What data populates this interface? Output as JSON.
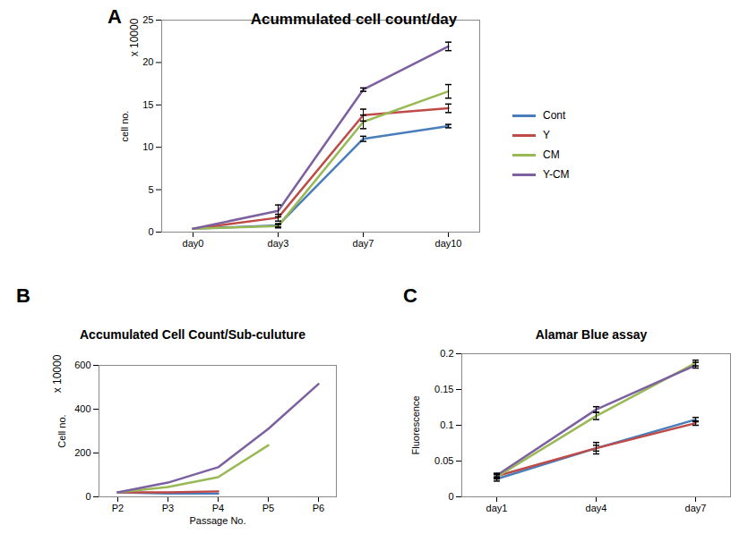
{
  "chart_data": [
    {
      "type": "line",
      "panel_label": "A",
      "title": "Acummulated cell count/day",
      "y_label": "cell no.",
      "annotations": [
        "x 10000"
      ],
      "categories": [
        "day0",
        "day3",
        "day7",
        "day10"
      ],
      "ylim": [
        0,
        25
      ],
      "yticks": [
        0,
        5,
        10,
        15,
        20,
        25
      ],
      "legend": "right",
      "series": [
        {
          "name": "Cont",
          "color": "#4a7ebb",
          "values": [
            0.4,
            0.8,
            11,
            12.5
          ],
          "errors": [
            0,
            0.2,
            0.3,
            0.2
          ]
        },
        {
          "name": "Y",
          "color": "#be4b48",
          "values": [
            0.4,
            1.7,
            13.8,
            14.6
          ],
          "errors": [
            0,
            0.4,
            0.7,
            0.5
          ]
        },
        {
          "name": "CM",
          "color": "#98b954",
          "values": [
            0.4,
            0.7,
            13,
            16.6
          ],
          "errors": [
            0,
            0.2,
            0.8,
            0.8
          ]
        },
        {
          "name": "Y-CM",
          "color": "#7d60a0",
          "values": [
            0.4,
            2.5,
            16.8,
            21.9
          ],
          "errors": [
            0,
            0.7,
            0.2,
            0.5
          ]
        }
      ]
    },
    {
      "type": "line",
      "panel_label": "B",
      "title": "Accumulated Cell Count/Sub-culuture",
      "x_label": "Passage No.",
      "y_label": "Cell no.",
      "annotations": [
        "x 10000"
      ],
      "categories": [
        "P2",
        "P3",
        "P4",
        "P5",
        "P6"
      ],
      "ylim": [
        0,
        600
      ],
      "yticks": [
        0,
        200,
        400,
        600
      ],
      "legend": "none",
      "series": [
        {
          "name": "Cont",
          "color": "#4a7ebb",
          "values": [
            20,
            15,
            15,
            null,
            null
          ]
        },
        {
          "name": "Y",
          "color": "#be4b48",
          "values": [
            20,
            20,
            25,
            null,
            null
          ]
        },
        {
          "name": "CM",
          "color": "#98b954",
          "values": [
            20,
            45,
            90,
            235,
            null
          ]
        },
        {
          "name": "Y-CM",
          "color": "#7d60a0",
          "values": [
            20,
            65,
            135,
            310,
            515
          ]
        }
      ]
    },
    {
      "type": "line",
      "panel_label": "C",
      "title": "Alamar Blue assay",
      "y_label": "Fluorescence",
      "categories": [
        "day1",
        "day4",
        "day7"
      ],
      "ylim": [
        0,
        0.2
      ],
      "yticks": [
        0,
        0.05,
        0.1,
        0.15,
        0.2
      ],
      "legend": "none",
      "series": [
        {
          "name": "Cont",
          "color": "#4a7ebb",
          "values": [
            0.025,
            0.068,
            0.108
          ],
          "errors": [
            0.003,
            0.004,
            0.003
          ]
        },
        {
          "name": "Y",
          "color": "#be4b48",
          "values": [
            0.029,
            0.068,
            0.103
          ],
          "errors": [
            0.003,
            0.008,
            0.003
          ]
        },
        {
          "name": "CM",
          "color": "#98b954",
          "values": [
            0.028,
            0.113,
            0.187
          ],
          "errors": [
            0.003,
            0.005,
            0.004
          ]
        },
        {
          "name": "Y-CM",
          "color": "#7d60a0",
          "values": [
            0.03,
            0.122,
            0.184
          ],
          "errors": [
            0.003,
            0.004,
            0.004
          ]
        }
      ]
    }
  ]
}
